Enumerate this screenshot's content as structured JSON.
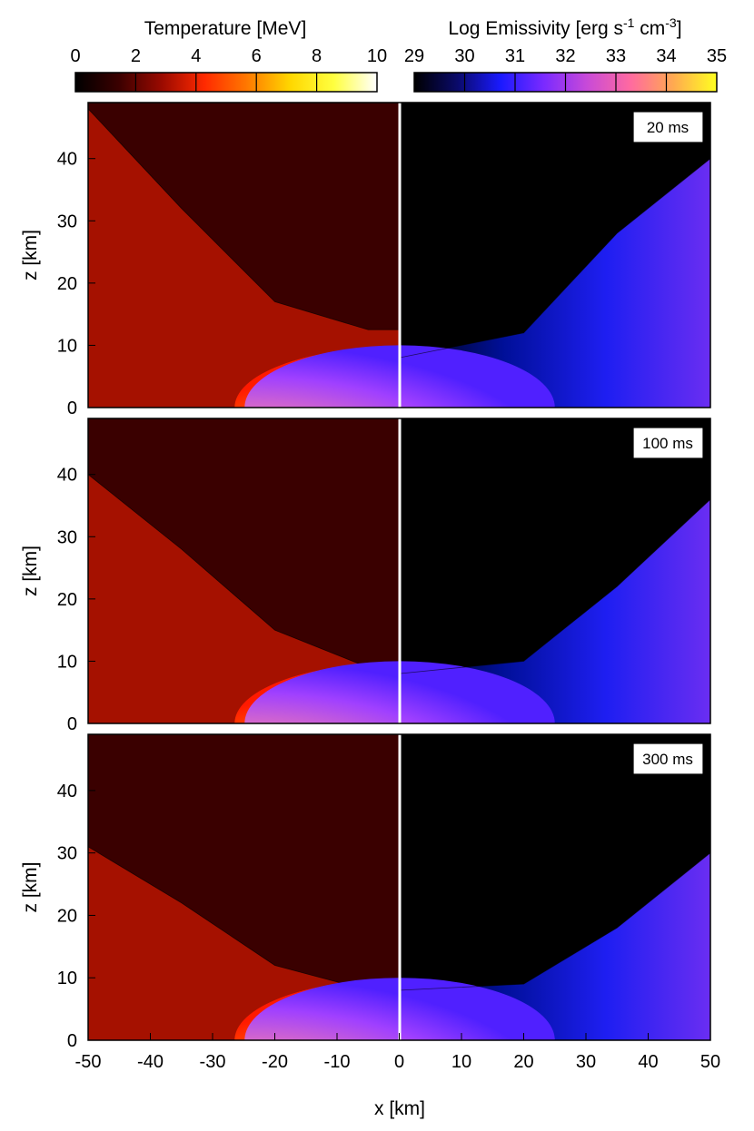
{
  "chart_data": {
    "type": "heatmap",
    "colorbars": [
      {
        "id": "temperature",
        "label": "Temperature [MeV]",
        "range": [
          0,
          10
        ],
        "ticks": [
          "0",
          "2",
          "4",
          "6",
          "8",
          "10"
        ],
        "tick_values": [
          0,
          2,
          4,
          6,
          8,
          10
        ],
        "colormap": [
          "#000000",
          "#3a0000",
          "#9a0a00",
          "#ff2a00",
          "#ff7a00",
          "#ffd800",
          "#ffff40",
          "#ffffff"
        ]
      },
      {
        "id": "emissivity",
        "label_parts": [
          "Log Emissivity [erg s",
          "-1",
          " cm",
          "-3",
          "]"
        ],
        "range": [
          29,
          35
        ],
        "ticks": [
          "29",
          "30",
          "31",
          "32",
          "33",
          "34",
          "35"
        ],
        "tick_values": [
          29,
          30,
          31,
          32,
          33,
          34,
          35
        ],
        "colormap": [
          "#000000",
          "#0a0a6a",
          "#1a1aff",
          "#7a2aff",
          "#c84ad8",
          "#ff6aa0",
          "#ffaa50",
          "#ffff20"
        ]
      }
    ],
    "panels": [
      {
        "time_label": "20 ms",
        "temperature_mev": {
          "envelope_surface_z_km": [
            12.5,
            10.5,
            9
          ],
          "hot_core_max_x_km": -6,
          "disk_height_km": 8,
          "cool_outflow_boundary_z_at_x": [
            [
              -50,
              48
            ],
            [
              -35,
              32
            ],
            [
              -20,
              17
            ],
            [
              -5,
              12.5
            ]
          ]
        },
        "log_emissivity": {
          "outflow_boundary_z_at_x": [
            [
              0,
              8
            ],
            [
              20,
              12
            ],
            [
              35,
              28
            ],
            [
              50,
              40
            ]
          ],
          "peak_value": 34.5
        }
      },
      {
        "time_label": "100 ms",
        "temperature_mev": {
          "envelope_surface_z_km": [
            9,
            8,
            7
          ],
          "hot_core_max_x_km": -6,
          "disk_height_km": 8,
          "cool_outflow_boundary_z_at_x": [
            [
              -50,
              40
            ],
            [
              -35,
              28
            ],
            [
              -20,
              15
            ],
            [
              -5,
              9
            ]
          ]
        },
        "log_emissivity": {
          "outflow_boundary_z_at_x": [
            [
              0,
              8
            ],
            [
              20,
              10
            ],
            [
              35,
              22
            ],
            [
              50,
              36
            ]
          ],
          "peak_value": 34
        }
      },
      {
        "time_label": "300 ms",
        "temperature_mev": {
          "envelope_surface_z_km": [
            9,
            8,
            7
          ],
          "hot_core_max_x_km": -6,
          "disk_height_km": 8,
          "cool_outflow_boundary_z_at_x": [
            [
              -50,
              31
            ],
            [
              -35,
              22
            ],
            [
              -20,
              12
            ],
            [
              -5,
              8
            ]
          ]
        },
        "log_emissivity": {
          "outflow_boundary_z_at_x": [
            [
              0,
              8
            ],
            [
              20,
              9
            ],
            [
              35,
              18
            ],
            [
              50,
              30
            ]
          ],
          "peak_value": 33.5
        }
      }
    ],
    "x_axis": {
      "label": "x [km]",
      "range": [
        -50,
        50
      ],
      "ticks": [
        "-50",
        "-40",
        "-30",
        "-20",
        "-10",
        "0",
        "10",
        "20",
        "30",
        "40",
        "50"
      ],
      "tick_values": [
        -50,
        -40,
        -30,
        -20,
        -10,
        0,
        10,
        20,
        30,
        40,
        50
      ]
    },
    "y_axis": {
      "label": "z [km]",
      "range": [
        0,
        49
      ],
      "ticks": [
        "0",
        "10",
        "20",
        "30",
        "40"
      ],
      "tick_values": [
        0,
        10,
        20,
        30,
        40
      ]
    },
    "legend": "top",
    "grid": false
  }
}
